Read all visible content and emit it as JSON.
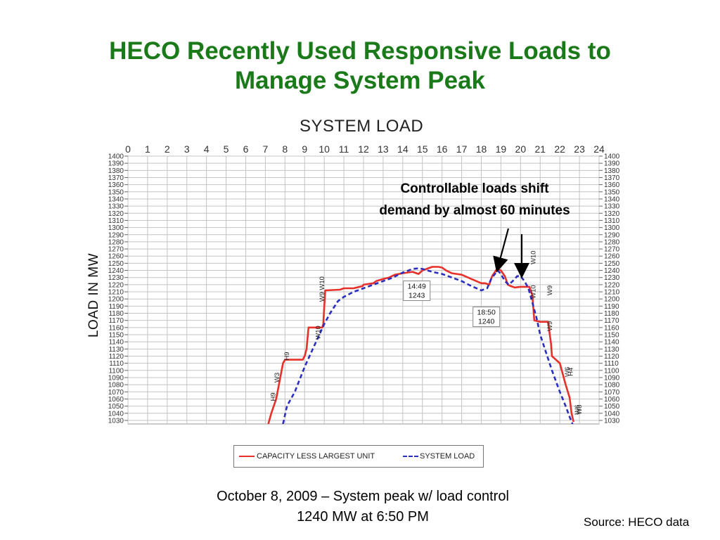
{
  "slide": {
    "title_line1": "HECO Recently Used Responsive Loads to",
    "title_line2": "Manage System Peak",
    "callout_line1": "Controllable loads shift",
    "callout_line2": "demand by almost 60 minutes",
    "caption_line1": "October 8, 2009 – System peak w/ load control",
    "caption_line2": "1240 MW at 6:50 PM",
    "source": "Source: HECO data"
  },
  "chart_data": {
    "type": "line",
    "title": "SYSTEM LOAD",
    "ylabel": "LOAD IN MW",
    "xlabel": "",
    "xlim": [
      0,
      24
    ],
    "ylim": [
      1025,
      1400
    ],
    "x_ticks": [
      0,
      1,
      2,
      3,
      4,
      5,
      6,
      7,
      8,
      9,
      10,
      11,
      12,
      13,
      14,
      15,
      16,
      17,
      18,
      19,
      20,
      21,
      22,
      23,
      24
    ],
    "y_ticks": [
      1030,
      1040,
      1050,
      1060,
      1070,
      1080,
      1090,
      1100,
      1110,
      1120,
      1130,
      1140,
      1150,
      1160,
      1170,
      1180,
      1190,
      1200,
      1210,
      1220,
      1230,
      1240,
      1250,
      1260,
      1270,
      1280,
      1290,
      1300,
      1310,
      1320,
      1330,
      1340,
      1350,
      1360,
      1370,
      1380,
      1390,
      1400
    ],
    "grid": true,
    "legend_position": "bottom",
    "series": [
      {
        "name": "CAPACITY LESS LARGEST UNIT",
        "style": "solid",
        "color": "#e8302a",
        "x": [
          7.15,
          7.3,
          7.55,
          7.9,
          8.0,
          8.9,
          9.0,
          9.1,
          9.2,
          9.9,
          9.95,
          10.0,
          10.05,
          10.8,
          11.0,
          11.5,
          11.95,
          12.0,
          12.5,
          12.65,
          13.0,
          13.3,
          13.6,
          14.0,
          14.5,
          14.8,
          15.0,
          15.5,
          15.8,
          16.0,
          16.2,
          16.5,
          17.0,
          17.5,
          18.0,
          18.2,
          18.4,
          18.55,
          18.8,
          19.0,
          19.2,
          19.35,
          19.5,
          19.7,
          20.0,
          20.45,
          20.6,
          20.7,
          21.0,
          21.4,
          21.55,
          21.6,
          22.0,
          22.3,
          22.5,
          22.6,
          22.7
        ],
        "y": [
          1025,
          1040,
          1060,
          1110,
          1115,
          1115,
          1120,
          1130,
          1160,
          1160,
          1165,
          1190,
          1212,
          1213,
          1215,
          1215,
          1218,
          1220,
          1222,
          1225,
          1228,
          1230,
          1234,
          1236,
          1238,
          1235,
          1240,
          1245,
          1245,
          1244,
          1240,
          1236,
          1234,
          1228,
          1222,
          1222,
          1220,
          1232,
          1242,
          1240,
          1232,
          1220,
          1218,
          1216,
          1217,
          1217,
          1205,
          1170,
          1168,
          1168,
          1138,
          1120,
          1110,
          1080,
          1062,
          1040,
          1028
        ]
      },
      {
        "name": "SYSTEM LOAD",
        "style": "dashed",
        "color": "#2a2fc0",
        "x": [
          7.9,
          8.1,
          8.5,
          9.0,
          9.5,
          10.0,
          10.3,
          10.7,
          11.0,
          11.5,
          12.0,
          12.5,
          13.0,
          13.5,
          14.0,
          14.3,
          14.5,
          14.82,
          15.0,
          15.5,
          16.0,
          16.5,
          17.0,
          17.5,
          18.0,
          18.3,
          18.5,
          18.83,
          19.0,
          19.2,
          19.4,
          19.6,
          19.83,
          20.0,
          20.2,
          20.4,
          20.6,
          20.8,
          21.0,
          21.3,
          21.6,
          22.0,
          22.3,
          22.5,
          22.65
        ],
        "y": [
          1025,
          1050,
          1070,
          1105,
          1135,
          1165,
          1180,
          1197,
          1203,
          1210,
          1215,
          1220,
          1225,
          1230,
          1237,
          1240,
          1242,
          1243,
          1242,
          1238,
          1235,
          1230,
          1225,
          1218,
          1212,
          1215,
          1228,
          1240,
          1235,
          1225,
          1220,
          1225,
          1232,
          1232,
          1225,
          1215,
          1195,
          1175,
          1150,
          1125,
          1100,
          1070,
          1050,
          1035,
          1025
        ]
      }
    ],
    "point_labels": [
      {
        "text_line1": "14:49",
        "text_line2": "1243",
        "x": 14.82,
        "y": 1243
      },
      {
        "text_line1": "18:50",
        "text_line2": "1240",
        "x": 18.83,
        "y": 1240
      }
    ],
    "step_annotations": [
      {
        "text": "H9",
        "x": 7.5,
        "y": 1063
      },
      {
        "text": "W3",
        "x": 7.7,
        "y": 1090
      },
      {
        "text": "H9",
        "x": 8.2,
        "y": 1120
      },
      {
        "text": "W10",
        "x": 9.8,
        "y": 1153
      },
      {
        "text": "W9",
        "x": 10.0,
        "y": 1203
      },
      {
        "text": "W10",
        "x": 10.0,
        "y": 1222
      },
      {
        "text": "W10",
        "x": 20.75,
        "y": 1258
      },
      {
        "text": "W10",
        "x": 20.75,
        "y": 1210
      },
      {
        "text": "W9",
        "x": 21.6,
        "y": 1212
      },
      {
        "text": "W9",
        "x": 21.6,
        "y": 1162
      },
      {
        "text": "W6",
        "x": 22.5,
        "y": 1098
      },
      {
        "text": "H4",
        "x": 22.65,
        "y": 1098
      },
      {
        "text": "W6",
        "x": 23.0,
        "y": 1045
      },
      {
        "text": "W8",
        "x": 23.1,
        "y": 1045
      }
    ]
  }
}
